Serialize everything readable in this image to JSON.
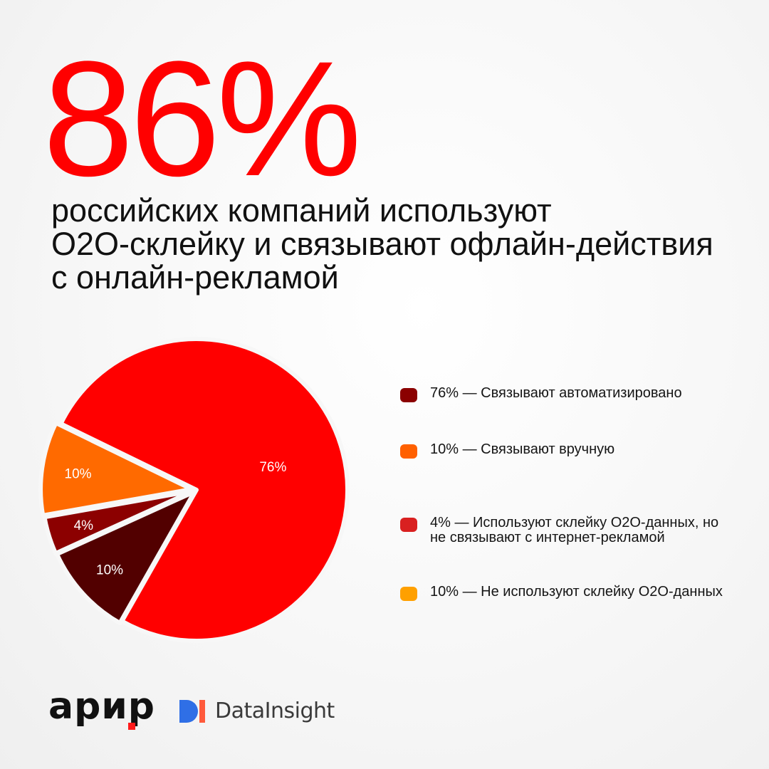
{
  "headline": {
    "value": "86%",
    "subtitle_lines": [
      "российских компаний используют",
      "O2O-склейку и связывают офлайн-действия",
      "с онлайн-рекламой"
    ]
  },
  "chart_data": {
    "type": "pie",
    "title": "86%",
    "slices": [
      {
        "label": "76%",
        "value": 76,
        "color": "#ff0000"
      },
      {
        "label": "10%",
        "value": 10,
        "color": "#520000"
      },
      {
        "label": "4%",
        "value": 4,
        "color": "#8c0000"
      },
      {
        "label": "10%",
        "value": 10,
        "color": "#ff6a00"
      }
    ],
    "legend": [
      {
        "text": "76% — Связывают автоматизировано",
        "color": "#8b0000"
      },
      {
        "text": "10% — Связывают вручную",
        "color": "#ff6000"
      },
      {
        "text": "4% — Используют склейку O2O-данных, но не связывают с интернет-рекламой",
        "color": "#d92020"
      },
      {
        "text": "10% — Не используют склейку O2O-данных",
        "color": "#ffa000"
      }
    ]
  },
  "logos": {
    "arir": "арир",
    "datainsight": "DataInsight"
  }
}
